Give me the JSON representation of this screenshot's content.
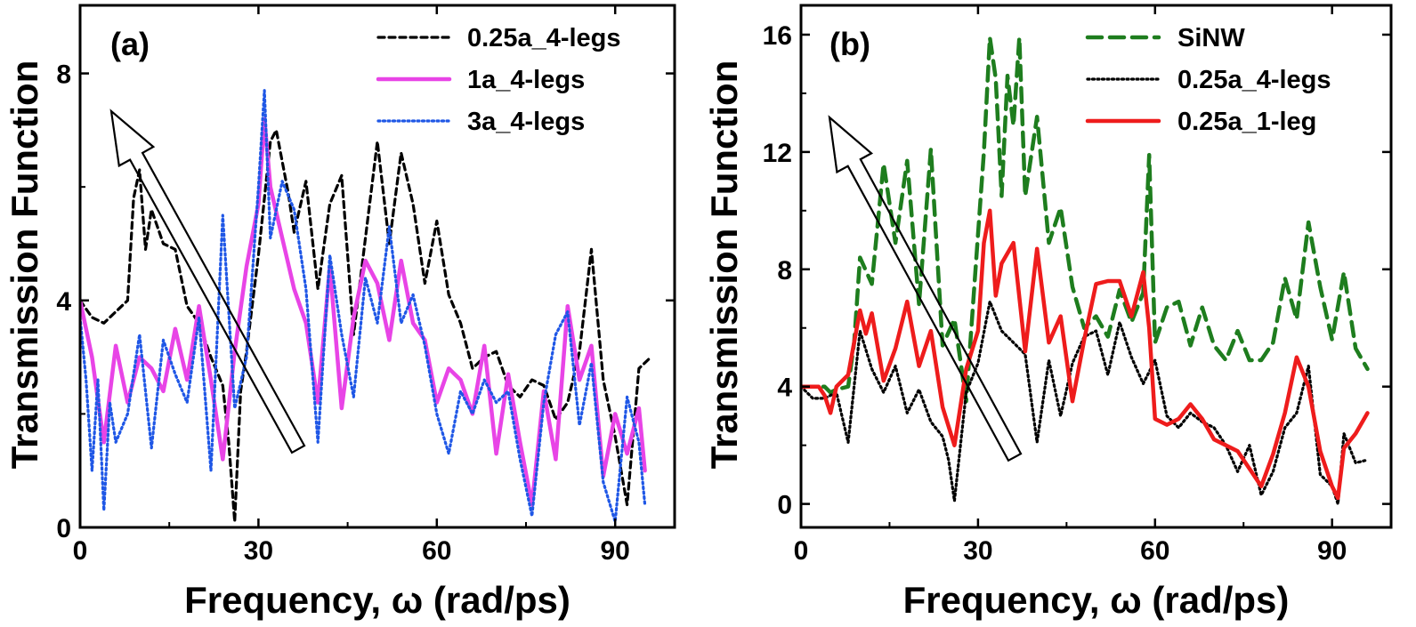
{
  "chart_data": [
    {
      "type": "line",
      "panel_label": "(a)",
      "xlabel": "Frequency, ω (rad/ps)",
      "ylabel": "Transmission Function",
      "xlim": [
        0,
        100
      ],
      "ylim": [
        0,
        9.2
      ],
      "xticks": [
        0,
        30,
        60,
        90
      ],
      "yticks": [
        0,
        4,
        8
      ],
      "legend_position": "top-right",
      "annotation": "open arrow pointing up-left",
      "series": [
        {
          "name": "0.25a_4-legs",
          "color": "#000000",
          "style": "dashed",
          "x": [
            0,
            2,
            4,
            6,
            8,
            9,
            10,
            11,
            12,
            14,
            16,
            18,
            20,
            22,
            24,
            25,
            26,
            27,
            28,
            30,
            32,
            33,
            35,
            36,
            38,
            40,
            42,
            44,
            46,
            48,
            50,
            52,
            54,
            56,
            58,
            60,
            62,
            64,
            66,
            68,
            70,
            72,
            74,
            76,
            78,
            80,
            82,
            84,
            86,
            88,
            90,
            92,
            94,
            96
          ],
          "y": [
            4.0,
            3.7,
            3.6,
            3.8,
            4.0,
            5.8,
            6.3,
            4.9,
            5.6,
            5.0,
            4.9,
            3.9,
            3.6,
            3.0,
            2.5,
            1.5,
            0.1,
            2.4,
            3.1,
            4.8,
            6.8,
            7.0,
            5.9,
            5.2,
            6.1,
            4.2,
            5.7,
            6.2,
            3.4,
            5.1,
            6.8,
            5.0,
            6.6,
            5.7,
            4.3,
            5.4,
            4.1,
            3.6,
            2.8,
            3.0,
            3.1,
            2.5,
            2.3,
            2.6,
            2.5,
            1.9,
            2.2,
            3.1,
            4.9,
            2.6,
            1.6,
            0.4,
            2.8,
            3.0
          ]
        },
        {
          "name": "1a_4-legs",
          "color": "#e844e6",
          "style": "solid",
          "x": [
            0,
            2,
            4,
            6,
            8,
            10,
            12,
            14,
            16,
            18,
            20,
            22,
            24,
            26,
            28,
            30,
            31,
            32,
            34,
            36,
            38,
            40,
            42,
            44,
            46,
            48,
            50,
            52,
            54,
            56,
            58,
            60,
            62,
            64,
            66,
            68,
            70,
            72,
            74,
            76,
            78,
            80,
            82,
            84,
            86,
            88,
            90,
            92,
            94,
            95
          ],
          "y": [
            4.0,
            3.0,
            1.5,
            3.2,
            2.2,
            3.0,
            2.8,
            2.4,
            3.5,
            2.6,
            3.9,
            2.6,
            1.2,
            3.1,
            4.6,
            5.7,
            7.2,
            6.0,
            5.1,
            4.2,
            3.6,
            2.2,
            4.6,
            2.1,
            3.7,
            4.7,
            4.3,
            3.3,
            4.7,
            3.6,
            3.3,
            2.2,
            2.8,
            2.6,
            2.0,
            3.2,
            1.3,
            2.7,
            1.5,
            0.4,
            2.4,
            1.2,
            3.9,
            2.6,
            3.2,
            0.9,
            2.0,
            1.3,
            2.1,
            1.0
          ]
        },
        {
          "name": "3a_4-legs",
          "color": "#1f57e6",
          "style": "dotted",
          "x": [
            0,
            1,
            2,
            3,
            4,
            5,
            6,
            8,
            10,
            12,
            14,
            16,
            18,
            20,
            22,
            24,
            26,
            28,
            30,
            31,
            32,
            34,
            36,
            38,
            40,
            42,
            44,
            46,
            48,
            50,
            52,
            54,
            56,
            58,
            60,
            62,
            64,
            66,
            68,
            70,
            72,
            74,
            76,
            78,
            80,
            82,
            84,
            86,
            88,
            90,
            92,
            94,
            95
          ],
          "y": [
            3.7,
            2.6,
            1.0,
            2.6,
            0.3,
            2.2,
            1.5,
            2.0,
            3.4,
            1.4,
            3.3,
            2.7,
            2.2,
            3.7,
            1.0,
            5.5,
            2.1,
            3.0,
            6.0,
            7.7,
            5.1,
            6.1,
            5.6,
            4.2,
            1.5,
            4.8,
            3.4,
            2.3,
            4.4,
            3.6,
            5.3,
            3.6,
            4.1,
            3.2,
            2.0,
            1.3,
            2.4,
            2.0,
            2.6,
            2.2,
            2.4,
            1.2,
            0.2,
            2.2,
            3.4,
            3.8,
            1.8,
            2.9,
            0.8,
            0.1,
            2.3,
            1.5,
            0.4
          ]
        }
      ]
    },
    {
      "type": "line",
      "panel_label": "(b)",
      "xlabel": "Frequency, ω (rad/ps)",
      "ylabel": "Transmission Function",
      "xlim": [
        0,
        100
      ],
      "ylim": [
        -0.8,
        17.0
      ],
      "xticks": [
        0,
        30,
        60,
        90
      ],
      "yticks": [
        0,
        4,
        8,
        12,
        16
      ],
      "legend_position": "top-right",
      "annotation": "open arrow pointing up-left",
      "series": [
        {
          "name": "SiNW",
          "color": "#1e7d1e",
          "style": "dashed",
          "x": [
            0,
            2,
            4,
            5,
            6,
            8,
            9,
            10,
            12,
            14,
            16,
            18,
            20,
            22,
            24,
            26,
            28,
            30,
            31,
            32,
            33,
            34,
            35,
            36,
            37,
            38,
            40,
            42,
            44,
            46,
            48,
            50,
            52,
            54,
            56,
            58,
            59,
            60,
            62,
            64,
            66,
            68,
            70,
            72,
            74,
            76,
            78,
            80,
            82,
            84,
            86,
            88,
            90,
            92,
            94,
            96
          ],
          "y": [
            4.0,
            4.0,
            4.0,
            3.8,
            3.9,
            4.0,
            5.5,
            8.4,
            7.5,
            11.6,
            8.9,
            11.7,
            6.8,
            12.1,
            5.4,
            6.3,
            3.5,
            9.2,
            12.0,
            15.9,
            14.5,
            10.5,
            14.6,
            12.9,
            15.9,
            10.5,
            13.2,
            8.9,
            10.1,
            7.4,
            6.0,
            6.4,
            5.7,
            7.3,
            6.2,
            7.2,
            11.9,
            5.5,
            6.7,
            6.9,
            5.4,
            6.7,
            5.4,
            4.9,
            5.9,
            4.9,
            4.9,
            5.5,
            7.7,
            6.3,
            9.6,
            7.4,
            5.6,
            7.9,
            5.3,
            4.6
          ]
        },
        {
          "name": "0.25a_4-legs",
          "color": "#000000",
          "style": "dotted",
          "x": [
            0,
            2,
            4,
            6,
            8,
            10,
            12,
            14,
            16,
            18,
            20,
            22,
            24,
            25,
            26,
            28,
            30,
            32,
            34,
            36,
            38,
            40,
            42,
            44,
            46,
            48,
            50,
            52,
            54,
            56,
            58,
            60,
            62,
            64,
            66,
            68,
            70,
            72,
            74,
            76,
            78,
            80,
            82,
            84,
            86,
            88,
            90,
            91,
            92,
            94,
            96
          ],
          "y": [
            4.0,
            3.6,
            3.6,
            3.8,
            2.1,
            5.9,
            4.6,
            3.8,
            4.7,
            3.1,
            3.9,
            2.8,
            2.3,
            1.5,
            0.1,
            3.8,
            4.8,
            6.9,
            5.9,
            5.5,
            5.1,
            2.1,
            4.9,
            3.0,
            4.8,
            5.7,
            5.9,
            4.4,
            6.2,
            5.0,
            4.1,
            4.9,
            3.0,
            2.6,
            3.1,
            2.8,
            2.6,
            2.0,
            1.1,
            2.0,
            0.3,
            1.1,
            2.6,
            3.1,
            4.7,
            1.0,
            0.6,
            0.0,
            2.4,
            1.4,
            1.5
          ]
        },
        {
          "name": "0.25a_1-leg",
          "color": "#ee1c1c",
          "style": "solid",
          "x": [
            0,
            2,
            3,
            4,
            5,
            6,
            8,
            10,
            11,
            12,
            14,
            16,
            18,
            20,
            22,
            24,
            26,
            28,
            30,
            31,
            32,
            33,
            34,
            36,
            38,
            40,
            42,
            44,
            46,
            48,
            50,
            52,
            54,
            56,
            58,
            59,
            60,
            62,
            64,
            66,
            68,
            70,
            72,
            74,
            76,
            78,
            80,
            82,
            84,
            86,
            88,
            90,
            91,
            92,
            94,
            96
          ],
          "y": [
            4.0,
            4.0,
            4.0,
            3.7,
            3.1,
            4.0,
            4.4,
            6.6,
            5.8,
            6.5,
            4.2,
            5.3,
            6.9,
            4.7,
            5.9,
            3.3,
            2.0,
            4.6,
            5.9,
            8.9,
            10.0,
            7.1,
            8.2,
            8.9,
            5.2,
            8.7,
            5.5,
            6.4,
            3.5,
            5.6,
            7.5,
            7.6,
            7.6,
            6.4,
            7.9,
            6.0,
            2.9,
            2.7,
            2.9,
            3.4,
            2.9,
            2.2,
            2.0,
            1.8,
            1.2,
            0.6,
            1.7,
            3.1,
            5.0,
            4.0,
            1.8,
            0.6,
            0.2,
            1.9,
            2.4,
            3.1
          ]
        }
      ]
    }
  ]
}
